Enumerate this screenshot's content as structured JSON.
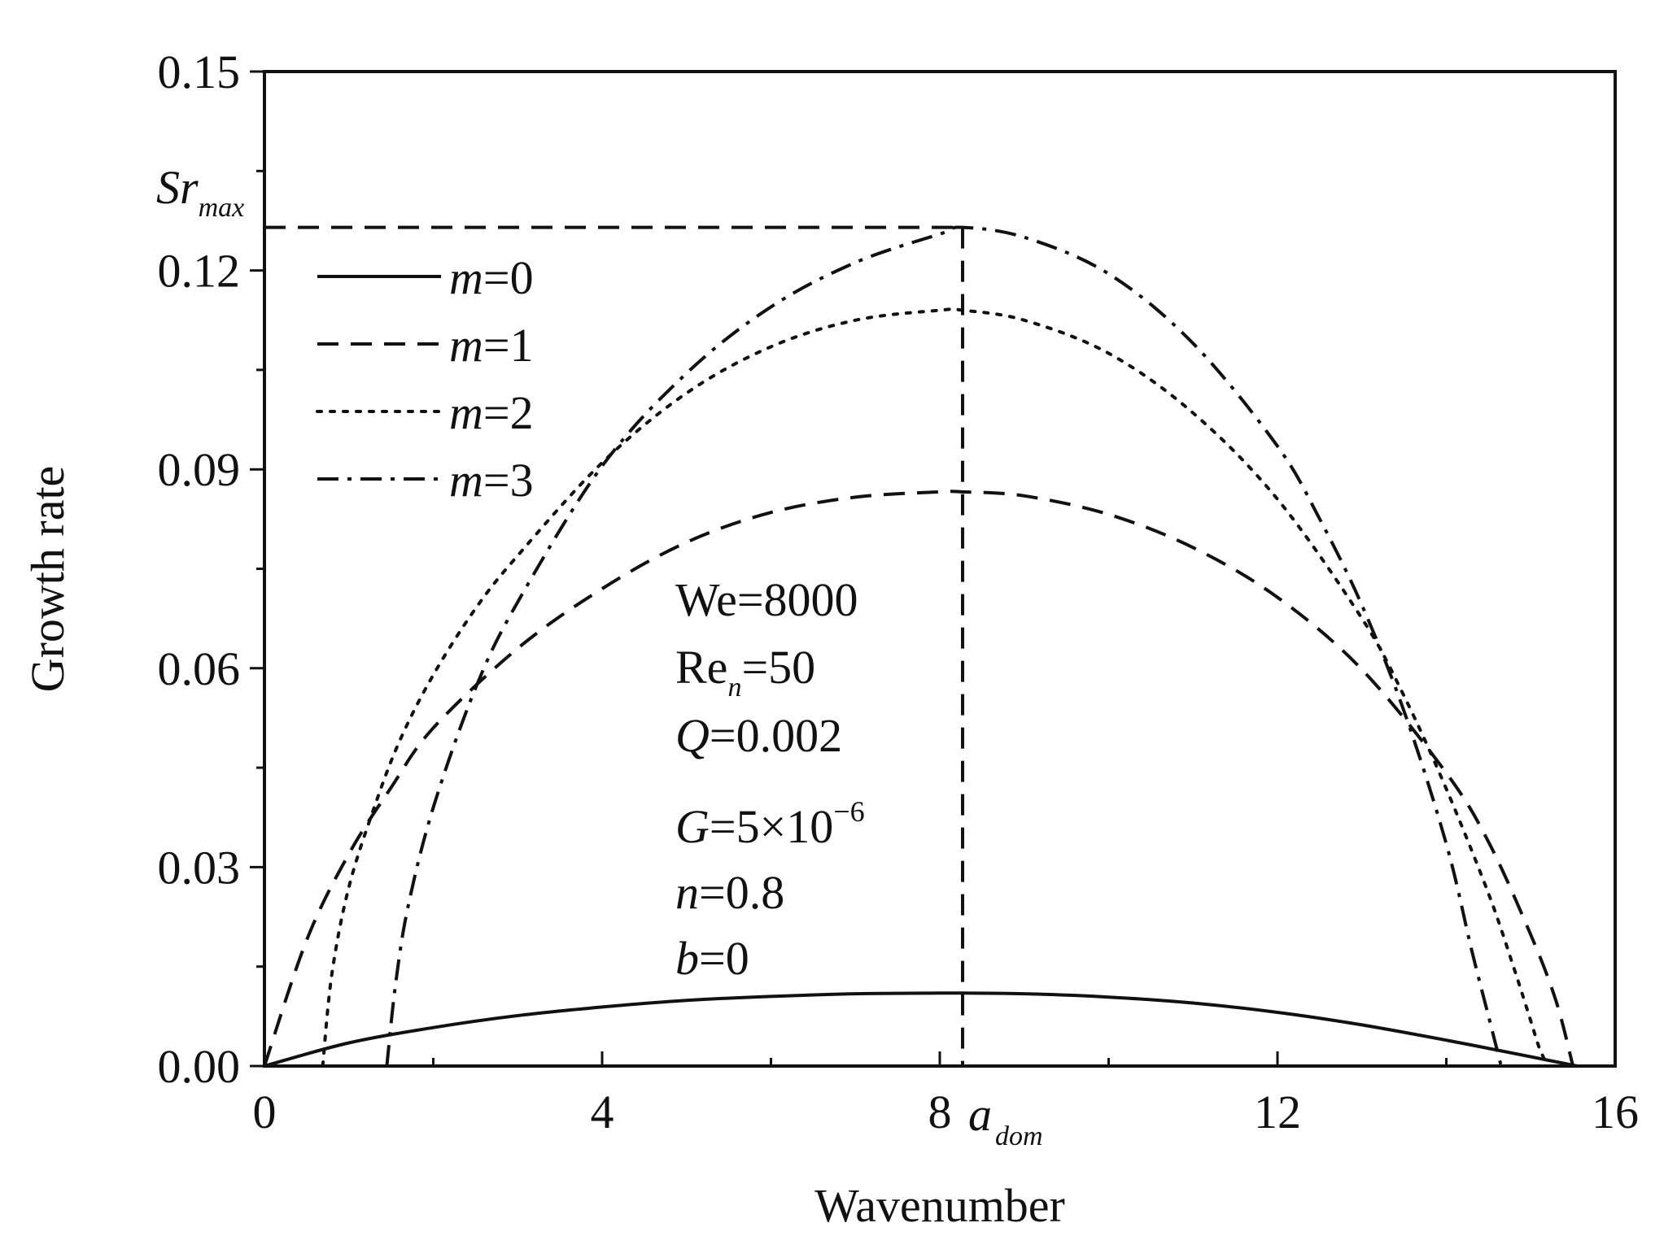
{
  "chart_data": {
    "type": "line",
    "title": "",
    "xlabel": "Wavenumber",
    "ylabel": "Growth rate",
    "xlim": [
      0,
      16
    ],
    "ylim": [
      0,
      0.15
    ],
    "xticks": [
      "0",
      "4",
      "8",
      "12",
      "16"
    ],
    "xtick_values": [
      0,
      4,
      8,
      12,
      16
    ],
    "yticks": [
      "0.00",
      "0.03",
      "0.06",
      "0.09",
      "0.12",
      "0.15"
    ],
    "ytick_values": [
      0,
      0.03,
      0.06,
      0.09,
      0.12,
      0.15
    ],
    "grid": false,
    "legend_position": "top-left",
    "series": [
      {
        "name": "m=0",
        "label_italic": "m",
        "label_rest": "=0",
        "style": "solid",
        "x": [
          0,
          1,
          2,
          3,
          4,
          5,
          6,
          7,
          8,
          8.27,
          9,
          10,
          11,
          12,
          13,
          14,
          15,
          15.55
        ],
        "y": [
          0,
          0.0035,
          0.0058,
          0.0076,
          0.0089,
          0.0099,
          0.0105,
          0.0109,
          0.011,
          0.011,
          0.0109,
          0.0104,
          0.0095,
          0.0081,
          0.0062,
          0.0039,
          0.0014,
          0
        ]
      },
      {
        "name": "m=1",
        "label_italic": "m",
        "label_rest": "=1",
        "style": "dash",
        "x": [
          0,
          0.5,
          1,
          1.5,
          2,
          3,
          4,
          5,
          6,
          7,
          8,
          8.27,
          9,
          10,
          11,
          12,
          13,
          14,
          14.5,
          15,
          15.3,
          15.5
        ],
        "y": [
          0,
          0.019,
          0.032,
          0.042,
          0.051,
          0.063,
          0.072,
          0.079,
          0.0835,
          0.0858,
          0.0866,
          0.0866,
          0.086,
          0.0832,
          0.0782,
          0.0707,
          0.0598,
          0.0442,
          0.0338,
          0.0198,
          0.0098,
          0
        ]
      },
      {
        "name": "m=2",
        "label_italic": "m",
        "label_rest": "=2",
        "style": "dot",
        "x": [
          0.69,
          0.8,
          1,
          1.3,
          1.6,
          2,
          2.5,
          3,
          4,
          5,
          6,
          7,
          8,
          8.27,
          9,
          10,
          11,
          12,
          13,
          13.5,
          14,
          14.5,
          14.8,
          15,
          15.1,
          15.2
        ],
        "y": [
          0,
          0.014,
          0.027,
          0.039,
          0.049,
          0.059,
          0.069,
          0.077,
          0.091,
          0.1015,
          0.1085,
          0.1125,
          0.114,
          0.114,
          0.1125,
          0.1075,
          0.0985,
          0.0855,
          0.0675,
          0.0558,
          0.0418,
          0.026,
          0.0148,
          0.0068,
          0.0028,
          0
        ]
      },
      {
        "name": "m=3",
        "label_italic": "m",
        "label_rest": "=3",
        "style": "dashdot",
        "x": [
          1.45,
          1.55,
          1.7,
          2,
          2.5,
          3,
          4,
          5,
          6,
          7,
          8,
          8.27,
          9,
          10,
          11,
          12,
          12.5,
          13,
          13.5,
          14,
          14.3,
          14.5,
          14.65
        ],
        "y": [
          0,
          0.012,
          0.024,
          0.039,
          0.057,
          0.07,
          0.0905,
          0.1045,
          0.1145,
          0.1212,
          0.1255,
          0.1265,
          0.125,
          0.1195,
          0.109,
          0.0935,
          0.0825,
          0.0695,
          0.0535,
          0.0335,
          0.0175,
          0.0075,
          0
        ]
      }
    ],
    "reference_lines": {
      "sr_max_y": 0.1265,
      "a_dom_x": 8.27
    },
    "annotations": {
      "sr_max": {
        "main": "Sr",
        "sub": "max"
      },
      "a_dom": {
        "main": "a",
        "sub": "dom"
      },
      "params": {
        "we": "We=8000",
        "re_main": "Re",
        "re_sub": "n",
        "re_rest": "=50",
        "q_var": "Q",
        "q_rest": "=0.002",
        "g_var": "G",
        "g_rest": "=5×10",
        "g_exp": "−6",
        "n_var": "n",
        "n_rest": "=0.8",
        "b_var": "b",
        "b_rest": "=0"
      }
    }
  }
}
